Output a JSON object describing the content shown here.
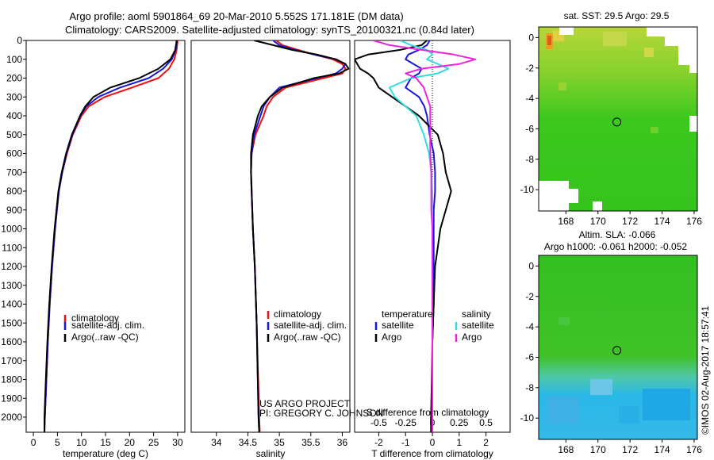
{
  "header": {
    "title_line1": "Argo profile: aoml 5901864_69 20-Mar-2010 5.552S 171.181E (DM data)",
    "title_line2": "Climatology: CARS2009. Satellite-adjusted climatology: synTS_20100321.nc (0.84d later)"
  },
  "credit": {
    "project": "US ARGO PROJECT",
    "pi": "PI: GREGORY C. JOHNSON",
    "imos": "©IMOS 02-Aug-2017 18:57:41"
  },
  "colors": {
    "climatology": "#ee1111",
    "satellite": "#1818dd",
    "argo": "#000000",
    "sal_satellite": "#33dddd",
    "sal_argo": "#ee22dd"
  },
  "chart_data": [
    {
      "id": "temperature",
      "type": "line",
      "xlabel": "temperature (deg C)",
      "ylabel": "",
      "xlim": [
        -1.5,
        31.5
      ],
      "ylim": [
        2080,
        0
      ],
      "xticks": [
        0,
        5,
        10,
        15,
        20,
        25,
        30
      ],
      "xtick_labels": [
        "0",
        "5",
        "10",
        "15",
        "20",
        "25",
        "30"
      ],
      "yticks": [
        0,
        100,
        200,
        300,
        400,
        500,
        600,
        700,
        800,
        900,
        1000,
        1100,
        1200,
        1300,
        1400,
        1500,
        1600,
        1700,
        1800,
        1900,
        2000
      ],
      "ytick_labels": [
        "0",
        "100",
        "200",
        "300",
        "400",
        "500",
        "600",
        "700",
        "800",
        "900",
        "1000",
        "1100",
        "1200",
        "1300",
        "1400",
        "1500",
        "1600",
        "1700",
        "1800",
        "1900",
        "2000"
      ],
      "depth": [
        0,
        50,
        100,
        150,
        200,
        250,
        300,
        350,
        400,
        500,
        600,
        700,
        800,
        900,
        1000,
        1200,
        1400,
        1600,
        1800,
        2000,
        2080
      ],
      "legend": [
        "climatology",
        "satellite-adj. clim.",
        "Argo(..raw -QC)"
      ],
      "series": [
        {
          "name": "climatology",
          "values": [
            30.0,
            29.8,
            29.3,
            28.2,
            26.0,
            20.5,
            14.8,
            11.5,
            10.0,
            8.2,
            7.0,
            6.0,
            5.3,
            4.9,
            4.5,
            3.9,
            3.4,
            3.0,
            2.7,
            2.4,
            2.3
          ]
        },
        {
          "name": "satellite-adj. clim.",
          "values": [
            29.9,
            29.6,
            28.8,
            27.0,
            24.0,
            18.0,
            13.5,
            11.0,
            9.8,
            8.1,
            6.9,
            6.0,
            5.3,
            4.9,
            4.5,
            3.9,
            3.4,
            3.0,
            2.7,
            2.4,
            2.3
          ]
        },
        {
          "name": "Argo(..raw -QC)",
          "values": [
            29.8,
            29.5,
            28.5,
            26.0,
            22.0,
            16.0,
            12.5,
            10.8,
            9.7,
            8.0,
            6.8,
            5.9,
            5.2,
            4.8,
            4.4,
            3.8,
            3.3,
            2.9,
            2.6,
            2.3,
            2.3
          ]
        }
      ]
    },
    {
      "id": "salinity",
      "type": "line",
      "xlabel": "salinity",
      "xlim": [
        33.6,
        36.12
      ],
      "ylim": [
        2080,
        0
      ],
      "xticks": [
        34,
        34.5,
        35,
        35.5,
        36
      ],
      "xtick_labels": [
        "34",
        "34.5",
        "35",
        "35.5",
        "36"
      ],
      "depth": [
        0,
        25,
        50,
        75,
        100,
        125,
        150,
        175,
        200,
        250,
        300,
        350,
        400,
        500,
        600,
        700,
        800,
        1000,
        1200,
        1500,
        2000,
        2080
      ],
      "legend": [
        "climatology",
        "satellite-adj. clim.",
        "Argo(..raw -QC)"
      ],
      "series": [
        {
          "name": "climatology",
          "values": [
            34.95,
            35.05,
            35.3,
            35.55,
            35.85,
            36.0,
            36.05,
            36.0,
            35.7,
            35.1,
            34.9,
            34.8,
            34.75,
            34.62,
            34.56,
            34.55,
            34.56,
            34.58,
            34.61,
            34.64,
            34.68,
            34.69
          ]
        },
        {
          "name": "satellite-adj. clim.",
          "values": [
            34.9,
            35.0,
            35.25,
            35.55,
            35.9,
            36.05,
            36.0,
            35.9,
            35.6,
            35.0,
            34.85,
            34.75,
            34.7,
            34.6,
            34.56,
            34.55,
            34.56,
            34.58,
            34.61,
            34.64,
            34.67,
            34.68
          ]
        },
        {
          "name": "Argo(..raw -QC)",
          "values": [
            34.6,
            34.9,
            35.2,
            35.6,
            35.9,
            36.05,
            36.1,
            35.95,
            35.55,
            35.05,
            34.85,
            34.72,
            34.66,
            34.58,
            34.55,
            34.55,
            34.56,
            34.58,
            34.61,
            34.64,
            34.67,
            34.68
          ]
        }
      ]
    },
    {
      "id": "difference",
      "type": "line",
      "xlabel": "T difference from climatology",
      "x2label": "S difference from climatology",
      "xlim": [
        -2.9,
        2.9
      ],
      "ylim": [
        2080,
        0
      ],
      "xticks": [
        -2,
        -1,
        0,
        1,
        2
      ],
      "xtick_labels": [
        "-2",
        "-1",
        "0",
        "1",
        "2"
      ],
      "x2ticks": [
        -0.5,
        -0.25,
        0,
        0.25,
        0.5
      ],
      "x2tick_labels": [
        "-0.5",
        "-0.25",
        "0",
        "0.25",
        "0.5"
      ],
      "x2_scale": 4,
      "depth": [
        0,
        25,
        50,
        75,
        100,
        125,
        150,
        175,
        200,
        250,
        300,
        350,
        400,
        500,
        600,
        700,
        800,
        900,
        1000,
        1200,
        1400,
        1600,
        1800,
        2000,
        2080
      ],
      "legend_temperature_title": "temperature",
      "legend_salinity_title": "salinity",
      "legend": [
        "satellite",
        "Argo",
        "satellite",
        "Argo"
      ],
      "series": [
        {
          "name": "temperature satellite",
          "values": [
            -0.1,
            -0.2,
            -0.5,
            -0.9,
            -1.0,
            -0.7,
            -0.4,
            -0.5,
            -0.8,
            -1.0,
            -0.5,
            -0.3,
            -0.2,
            -0.1,
            0.05,
            0.1,
            0.1,
            0.05,
            0.05,
            0.05,
            0.05,
            0.0,
            0.0,
            0.0,
            0.0
          ]
        },
        {
          "name": "temperature Argo",
          "values": [
            -0.2,
            -0.4,
            -1.2,
            -2.4,
            -2.9,
            -2.8,
            -2.7,
            -2.4,
            -2.2,
            -2.0,
            -1.5,
            -1.0,
            -0.5,
            0.2,
            0.4,
            0.5,
            0.7,
            0.5,
            0.3,
            0.1,
            0.05,
            0.0,
            -0.02,
            -0.05,
            -0.05
          ]
        },
        {
          "name": "salinity satellite",
          "values": [
            -0.3,
            -0.2,
            -0.05,
            0.0,
            -0.05,
            0.05,
            0.15,
            0.05,
            -0.2,
            -0.4,
            -0.35,
            -0.25,
            -0.15,
            -0.08,
            -0.03,
            -0.01,
            0.0,
            0.0,
            0.0,
            0.0,
            0.0,
            0.0,
            0.0,
            0.0,
            0.0
          ]
        },
        {
          "name": "salinity Argo",
          "values": [
            -0.55,
            -0.4,
            -0.1,
            0.2,
            0.4,
            0.25,
            -0.1,
            -0.25,
            -0.15,
            -0.08,
            -0.05,
            -0.02,
            -0.02,
            -0.02,
            -0.02,
            -0.01,
            -0.01,
            -0.01,
            0.0,
            0.0,
            0.0,
            0.0,
            0.0,
            0.0,
            0.0
          ]
        }
      ]
    },
    {
      "id": "sst_map",
      "type": "heatmap",
      "title": "sat. SST: 29.5  Argo: 29.5",
      "xlim": [
        166.3,
        176.2
      ],
      "ylim": [
        -11.4,
        0.7
      ],
      "xticks": [
        168,
        170,
        172,
        174,
        176
      ],
      "xtick_labels": [
        "168",
        "170",
        "172",
        "174",
        "176"
      ],
      "yticks": [
        0,
        -2,
        -4,
        -6,
        -8,
        -10
      ],
      "ytick_labels": [
        "0",
        "-2",
        "-4",
        "-6",
        "-8",
        "-10"
      ],
      "marker": {
        "lon": 171.18,
        "lat": -5.55
      }
    },
    {
      "id": "sla_map",
      "type": "heatmap",
      "title_line1": "Altim. SLA: -0.066",
      "title_line2": "Argo h1000: -0.061 h2000: -0.052",
      "xlim": [
        166.3,
        176.2
      ],
      "ylim": [
        -11.4,
        0.7
      ],
      "xticks": [
        168,
        170,
        172,
        174,
        176
      ],
      "xtick_labels": [
        "168",
        "170",
        "172",
        "174",
        "176"
      ],
      "yticks": [
        0,
        -2,
        -4,
        -6,
        -8,
        -10
      ],
      "ytick_labels": [
        "0",
        "-2",
        "-4",
        "-6",
        "-8",
        "-10"
      ],
      "marker": {
        "lon": 171.18,
        "lat": -5.55
      }
    }
  ]
}
